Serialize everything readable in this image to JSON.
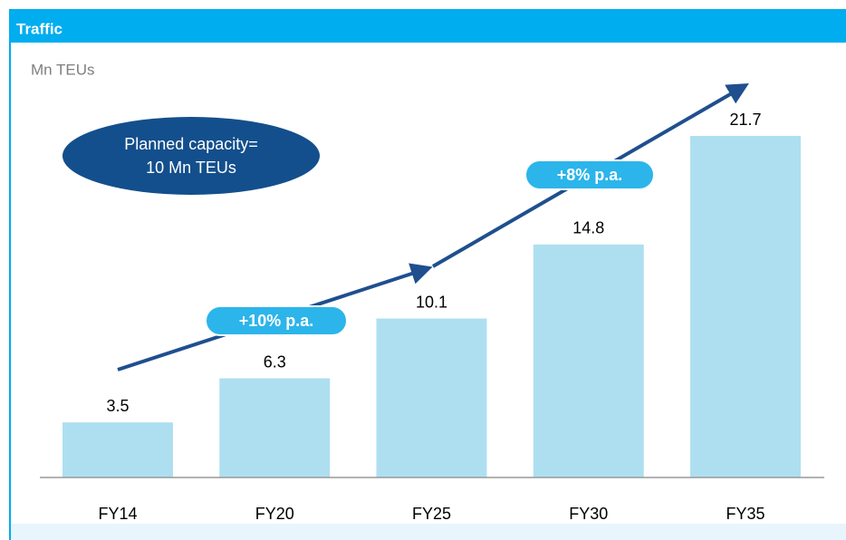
{
  "chart_data": {
    "type": "bar",
    "title": "Traffic",
    "subtitle": "Mn TEUs",
    "categories": [
      "FY14",
      "FY20",
      "FY25",
      "FY30",
      "FY35"
    ],
    "values": [
      3.5,
      6.3,
      10.1,
      14.8,
      21.7
    ],
    "color": "#aedff1",
    "annotations": {
      "capacity": [
        "Planned capacity=",
        "10 Mn TEUs"
      ],
      "growth_1": "+10% p.a.",
      "growth_2": "+8% p.a."
    }
  }
}
